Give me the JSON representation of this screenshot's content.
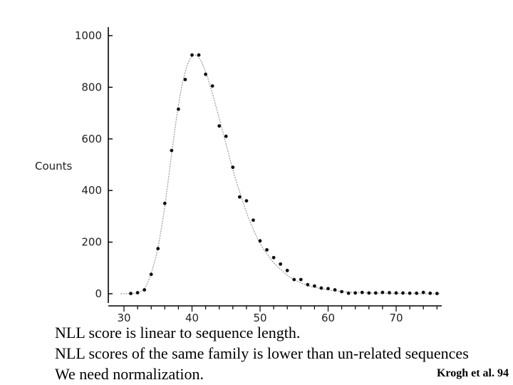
{
  "chart_data": {
    "type": "scatter",
    "title": "",
    "xlabel": "",
    "ylabel": "Counts",
    "xlim": [
      28,
      77
    ],
    "ylim": [
      -20,
      1000
    ],
    "xticks": [
      30,
      40,
      50,
      60,
      70
    ],
    "yticks": [
      0,
      200,
      400,
      600,
      800,
      1000
    ],
    "grid": false,
    "series": [
      {
        "name": "counts",
        "x": [
          31,
          32,
          33,
          34,
          35,
          36,
          37,
          38,
          39,
          40,
          41,
          42,
          43,
          44,
          45,
          46,
          47,
          48,
          49,
          50,
          51,
          52,
          53,
          54,
          55,
          56,
          57,
          58,
          59,
          60,
          61,
          62,
          63,
          64,
          65,
          66,
          67,
          68,
          69,
          70,
          71,
          72,
          73,
          74,
          75,
          76
        ],
        "y": [
          1,
          4,
          15,
          75,
          175,
          350,
          555,
          715,
          830,
          925,
          925,
          850,
          805,
          650,
          610,
          490,
          375,
          360,
          285,
          205,
          170,
          140,
          115,
          90,
          55,
          55,
          35,
          30,
          22,
          20,
          15,
          8,
          2,
          3,
          5,
          3,
          3,
          5,
          4,
          3,
          3,
          2,
          2,
          5,
          2,
          1
        ]
      }
    ],
    "fit_curve": {
      "name": "fitted distribution",
      "x": [
        29.5,
        31,
        32,
        33,
        34,
        35,
        36,
        37,
        38,
        39,
        40,
        41,
        42,
        43,
        44,
        45,
        46,
        47,
        48,
        49,
        50,
        51,
        52,
        53,
        54,
        55,
        56,
        57,
        58,
        59,
        60,
        62,
        64,
        66,
        68,
        70,
        72,
        74,
        76.5
      ],
      "y": [
        0,
        1,
        4,
        20,
        80,
        180,
        340,
        540,
        730,
        860,
        920,
        915,
        860,
        775,
        680,
        580,
        480,
        395,
        315,
        250,
        195,
        155,
        120,
        95,
        72,
        55,
        42,
        32,
        25,
        20,
        15,
        9,
        5,
        3,
        2,
        1,
        1,
        0,
        0
      ]
    }
  },
  "caption": {
    "lines": [
      "NLL score is linear to sequence length.",
      "NLL scores of the same family is lower than un-related sequences",
      "We need normalization."
    ],
    "citation": "Krogh et al. 94"
  }
}
